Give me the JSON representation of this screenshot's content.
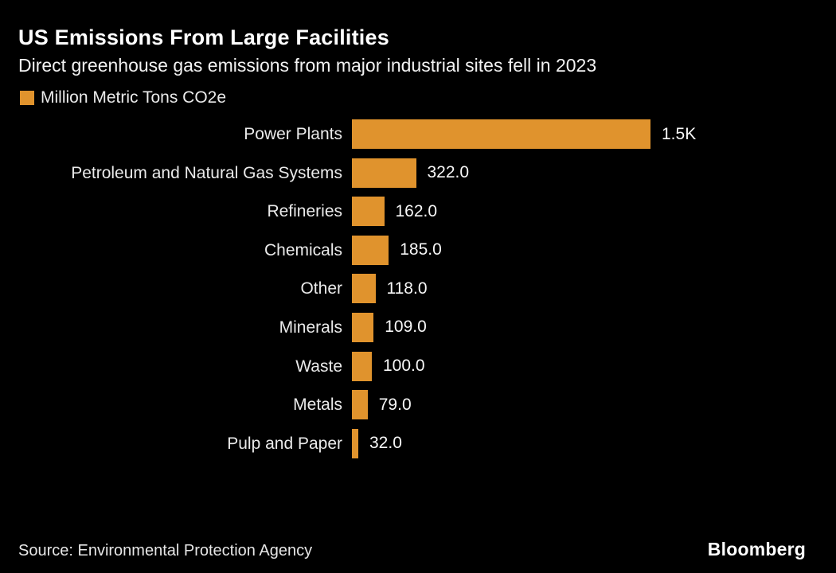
{
  "page": {
    "background": "#000000"
  },
  "header": {
    "title": "US Emissions From Large Facilities",
    "subtitle": "Direct greenhouse gas emissions from major industrial sites fell in 2023"
  },
  "legend": {
    "label": "Million Metric Tons CO2e",
    "swatch_color": "#E0932D"
  },
  "chart_data": {
    "type": "bar",
    "orientation": "horizontal",
    "title": "US Emissions From Large Facilities",
    "subtitle": "Direct greenhouse gas emissions from major industrial sites fell in 2023",
    "unit": "Million Metric Tons CO2e",
    "bar_color": "#E0932D",
    "xlim": [
      0,
      1500
    ],
    "grid": false,
    "legend_position": "top-left",
    "categories": [
      "Power Plants",
      "Petroleum and Natural Gas Systems",
      "Refineries",
      "Chemicals",
      "Other",
      "Minerals",
      "Waste",
      "Metals",
      "Pulp and Paper"
    ],
    "values": [
      1500,
      322,
      162,
      185,
      118,
      109,
      100,
      79,
      32
    ],
    "value_labels": [
      "1.5K",
      "322.0",
      "162.0",
      "185.0",
      "118.0",
      "109.0",
      "100.0",
      "79.0",
      "32.0"
    ]
  },
  "footer": {
    "source": "Source: Environmental Protection Agency",
    "brand": "Bloomberg"
  }
}
